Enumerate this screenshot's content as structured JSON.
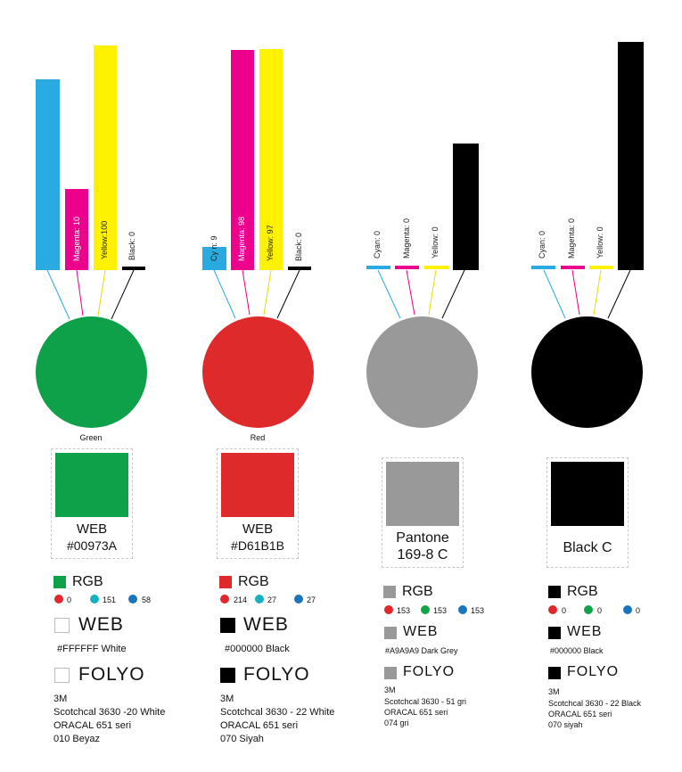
{
  "colors": {
    "cyan": "#29abe2",
    "magenta": "#ec008c",
    "yellow": "#fff200",
    "black": "#000000",
    "grey": "#999999",
    "rgb_red": "#e3262c",
    "rgb_green": "#14a34a",
    "rgb_blue": "#1b75bc"
  },
  "columns": [
    {
      "name": "Green",
      "fill": "#0fa04a",
      "cmyk_labels": [
        "",
        "Magenta: 10",
        "Yellow:100",
        "Black: 0"
      ],
      "stamp_lines": [
        "WEB",
        "#00973A"
      ],
      "rgb_head": "RGB",
      "rgb_values": [
        "0",
        "151",
        "58"
      ],
      "web_head": "WEB",
      "web_value": "#FFFFFF White",
      "folyo_head": "FOLYO",
      "folyo_lines": [
        "3M",
        "Scotchcal 3630 -20 White",
        "ORACAL 651 seri",
        "010 Beyaz"
      ]
    },
    {
      "name": "Red",
      "fill": "#df2a2b",
      "cmyk_labels": [
        "Cy  n:  9",
        "Magenta: 98",
        "Yellow: 97",
        "Black:  0"
      ],
      "stamp_lines": [
        "WEB",
        "#D61B1B"
      ],
      "rgb_head": "RGB",
      "rgb_values": [
        "214",
        "27",
        "27"
      ],
      "web_head": "WEB",
      "web_value": "#000000  Black",
      "folyo_head": "FOLYO",
      "folyo_lines": [
        "3M",
        "Scotchcal 3630 - 22 White",
        "ORACAL 651 seri",
        "070 Siyah"
      ]
    },
    {
      "name": "",
      "fill": "#999999",
      "cmyk_labels": [
        "Cyan: 0",
        "Magenta: 0",
        "Yellow: 0",
        ""
      ],
      "stamp_lines": [
        "Pantone",
        "169-8 C"
      ],
      "rgb_head": "RGB",
      "rgb_values": [
        "153",
        "153",
        "153"
      ],
      "web_head": "WEB",
      "web_value": "#A9A9A9 Dark Grey",
      "folyo_head": "FOLYO",
      "folyo_lines": [
        "3M",
        "Scotchcal  3630 - 51 gri",
        "ORACAL 651 seri",
        "074  gri"
      ]
    },
    {
      "name": "",
      "fill": "#000000",
      "cmyk_labels": [
        "Cyan: 0",
        "Magenta: 0",
        "Yellow: 0",
        ""
      ],
      "stamp_lines": [
        "Black C"
      ],
      "rgb_head": "RGB",
      "rgb_values": [
        "0",
        "0",
        "0"
      ],
      "web_head": "WEB",
      "web_value": "#000000  Black",
      "folyo_head": "FOLYO",
      "folyo_lines": [
        "3M",
        "Scotchcal  3630 - 22 Black",
        "ORACAL  651 seri",
        "070 siyah"
      ]
    }
  ]
}
